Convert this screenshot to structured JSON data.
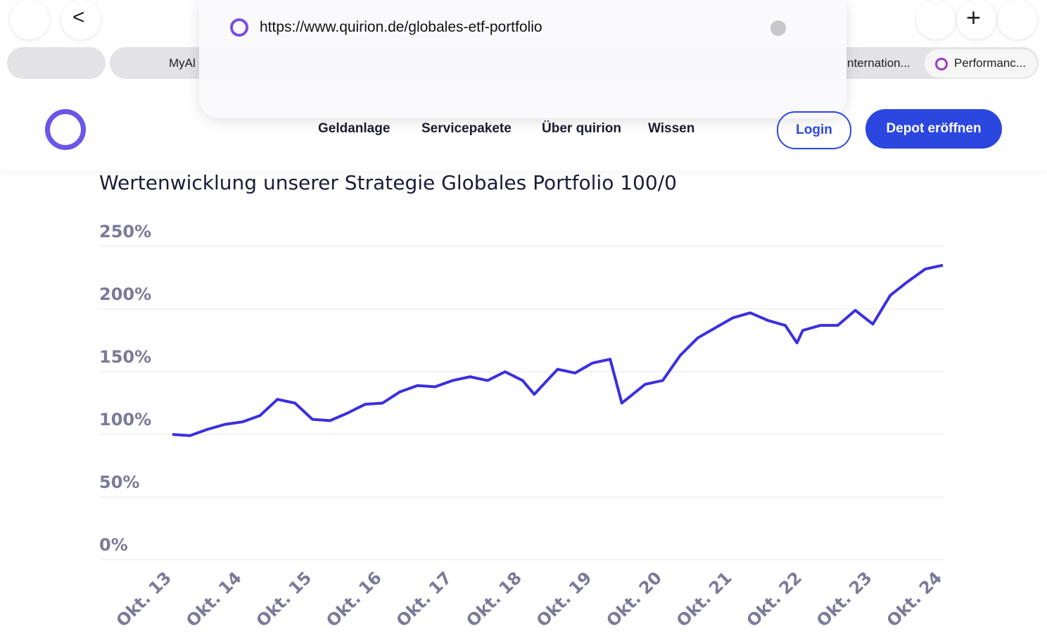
{
  "browser": {
    "url": "https://www.quirion.de/globales-etf-portfolio",
    "tabs": [
      "MyAl",
      "nternation...",
      "Performanc..."
    ]
  },
  "nav": {
    "items": [
      "Geldanlage",
      "Servicepakete",
      "Über quirion",
      "Wissen"
    ],
    "login": "Login",
    "cta": "Depot eröffnen"
  },
  "chart_data": {
    "type": "line",
    "title": "Wertenwicklung unserer Strategie Globales Portfolio 100/0",
    "x": [
      "2013-10",
      "2014-01",
      "2014-04",
      "2014-07",
      "2014-10",
      "2015-01",
      "2015-04",
      "2015-07",
      "2015-10",
      "2016-01",
      "2016-04",
      "2016-07",
      "2016-10",
      "2017-01",
      "2017-04",
      "2017-07",
      "2017-10",
      "2018-01",
      "2018-04",
      "2018-07",
      "2018-10",
      "2018-12",
      "2019-04",
      "2019-07",
      "2019-10",
      "2020-01",
      "2020-03",
      "2020-07",
      "2020-10",
      "2021-01",
      "2021-04",
      "2021-07",
      "2021-10",
      "2022-01",
      "2022-04",
      "2022-07",
      "2022-09",
      "2022-10",
      "2023-01",
      "2023-04",
      "2023-07",
      "2023-10",
      "2024-01",
      "2024-04",
      "2024-07",
      "2024-10"
    ],
    "series": [
      {
        "name": "Globales Portfolio 100/0",
        "color": "#3b2fe0",
        "values": [
          100,
          99,
          104,
          108,
          110,
          115,
          128,
          125,
          112,
          111,
          117,
          124,
          125,
          134,
          139,
          138,
          143,
          146,
          143,
          150,
          143,
          132,
          152,
          149,
          157,
          160,
          125,
          140,
          143,
          163,
          177,
          185,
          193,
          197,
          191,
          187,
          173,
          183,
          187,
          187,
          199,
          188,
          211,
          222,
          232,
          235
        ]
      }
    ],
    "xlim": [
      "2013-10",
      "2024-10"
    ],
    "xticks": [
      {
        "value": "2013-10",
        "label": "Okt. 13"
      },
      {
        "value": "2014-10",
        "label": "Okt. 14"
      },
      {
        "value": "2015-10",
        "label": "Okt. 15"
      },
      {
        "value": "2016-10",
        "label": "Okt. 16"
      },
      {
        "value": "2017-10",
        "label": "Okt. 17"
      },
      {
        "value": "2018-10",
        "label": "Okt. 18"
      },
      {
        "value": "2019-10",
        "label": "Okt. 19"
      },
      {
        "value": "2020-10",
        "label": "Okt. 20"
      },
      {
        "value": "2021-10",
        "label": "Okt. 21"
      },
      {
        "value": "2022-10",
        "label": "Okt. 22"
      },
      {
        "value": "2023-10",
        "label": "Okt. 23"
      },
      {
        "value": "2024-10",
        "label": "Okt. 24"
      }
    ],
    "ylim": [
      0,
      250
    ],
    "yticks": [
      {
        "value": 0,
        "label": "0%"
      },
      {
        "value": 50,
        "label": "50%"
      },
      {
        "value": 100,
        "label": "100%"
      },
      {
        "value": 150,
        "label": "150%"
      },
      {
        "value": 200,
        "label": "200%"
      },
      {
        "value": 250,
        "label": "250%"
      }
    ],
    "grid": true
  }
}
